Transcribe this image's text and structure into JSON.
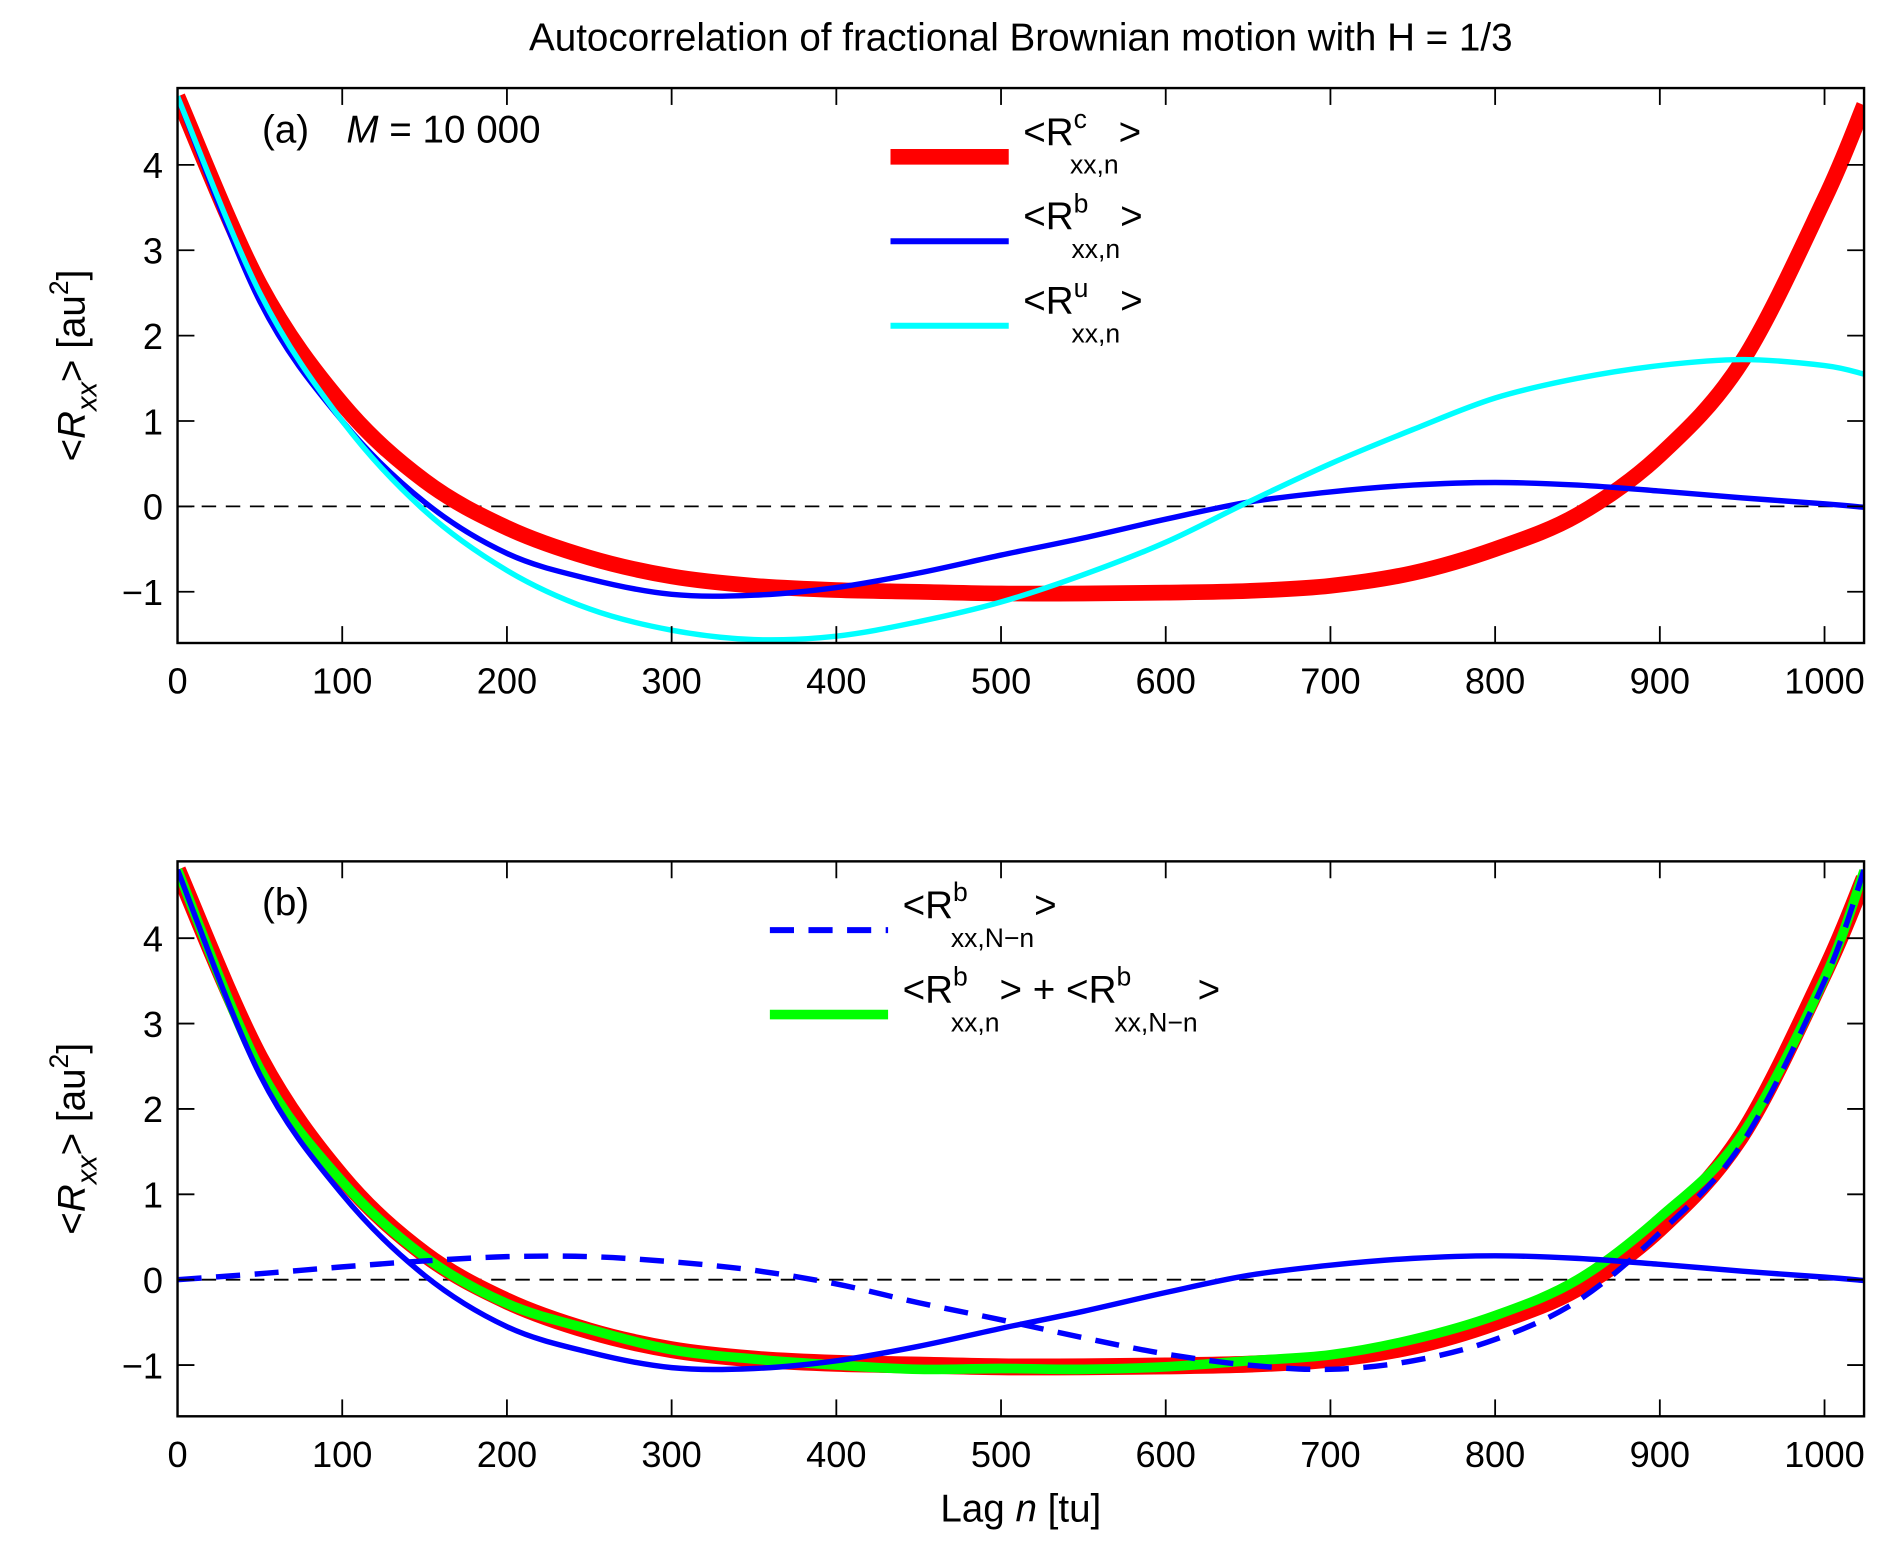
{
  "chart_data": [
    {
      "type": "line",
      "title": "Autocorrelation of fractional Brownian motion with H = 1/3",
      "panel_label": "(a)",
      "annotation_M": "M",
      "annotation_value": "= 10 000",
      "ylabel": {
        "main": "<R",
        "sub": "xx",
        "close": "> [au",
        "sup": "2",
        "end": "]"
      },
      "xlabel": "",
      "xlim": [
        0,
        1024
      ],
      "ylim": [
        -1.6,
        4.9
      ],
      "xticks": [
        "0",
        "100",
        "200",
        "300",
        "400",
        "500",
        "600",
        "700",
        "800",
        "900",
        "1000"
      ],
      "yticks": [
        "-1",
        "0",
        "1",
        "2",
        "3",
        "4"
      ],
      "zero_line": "dashed",
      "legend_position": "top-center",
      "x": [
        0,
        50,
        100,
        150,
        200,
        250,
        300,
        350,
        400,
        450,
        500,
        550,
        600,
        650,
        700,
        750,
        800,
        850,
        900,
        950,
        1000,
        1024
      ],
      "series": [
        {
          "name": "<R^c_xx,n>",
          "label": {
            "main": "<R",
            "sup": "c",
            "sub": "xx,n",
            "end": ">"
          },
          "color": "#ff0000",
          "style": "thick",
          "values": [
            4.8,
            2.6,
            1.2,
            0.3,
            -0.25,
            -0.6,
            -0.82,
            -0.93,
            -0.98,
            -1.0,
            -1.02,
            -1.02,
            -1.01,
            -0.99,
            -0.93,
            -0.78,
            -0.5,
            -0.1,
            0.6,
            1.7,
            3.6,
            4.7
          ]
        },
        {
          "name": "<R^b_xx,n>",
          "label": {
            "main": "<R",
            "sup": "b",
            "sub": "xx,n",
            "end": ">"
          },
          "color": "#0000ff",
          "style": "solid",
          "values": [
            4.8,
            2.4,
            1.0,
            0.05,
            -0.55,
            -0.85,
            -1.03,
            -1.04,
            -0.95,
            -0.78,
            -0.57,
            -0.37,
            -0.15,
            0.05,
            0.17,
            0.25,
            0.28,
            0.25,
            0.18,
            0.1,
            0.03,
            -0.01
          ]
        },
        {
          "name": "<R^u_xx,n>",
          "label": {
            "main": "<R",
            "sup": "u",
            "sub": "xx,n",
            "end": ">"
          },
          "color": "#00ffff",
          "style": "solid",
          "values": [
            4.8,
            2.5,
            1.0,
            -0.05,
            -0.75,
            -1.2,
            -1.45,
            -1.56,
            -1.52,
            -1.35,
            -1.12,
            -0.8,
            -0.42,
            0.05,
            0.5,
            0.9,
            1.27,
            1.5,
            1.65,
            1.72,
            1.65,
            1.55
          ]
        }
      ]
    },
    {
      "type": "line",
      "panel_label": "(b)",
      "ylabel": {
        "main": "<R",
        "sub": "xx",
        "close": "> [au",
        "sup": "2",
        "end": "]"
      },
      "xlabel": {
        "pre": "Lag ",
        "var": "n",
        "post": " [tu]"
      },
      "xlim": [
        0,
        1024
      ],
      "ylim": [
        -1.6,
        4.9
      ],
      "xticks": [
        "0",
        "100",
        "200",
        "300",
        "400",
        "500",
        "600",
        "700",
        "800",
        "900",
        "1000"
      ],
      "yticks": [
        "-1",
        "0",
        "1",
        "2",
        "3",
        "4"
      ],
      "zero_line": "dashed",
      "legend_position": "top-center",
      "x": [
        0,
        50,
        100,
        150,
        200,
        250,
        300,
        350,
        400,
        450,
        500,
        550,
        600,
        650,
        700,
        750,
        800,
        850,
        900,
        950,
        1000,
        1024
      ],
      "series": [
        {
          "name": "<R^c_xx,n>",
          "color": "#ff0000",
          "style": "outline",
          "in_legend": false,
          "values": [
            4.8,
            2.6,
            1.2,
            0.3,
            -0.25,
            -0.6,
            -0.82,
            -0.93,
            -0.98,
            -1.0,
            -1.02,
            -1.02,
            -1.01,
            -0.99,
            -0.93,
            -0.78,
            -0.5,
            -0.1,
            0.6,
            1.7,
            3.6,
            4.7
          ]
        },
        {
          "name": "<R^b_xx,n> + <R^b_xx,N-n>",
          "label": {
            "main": "<R",
            "sup": "b",
            "sub": "xx,n",
            "mid": "> + <R",
            "sup2": "b",
            "sub2": "xx,N−n",
            "end": ">"
          },
          "color": "#00ff00",
          "style": "thick",
          "values": [
            4.8,
            2.47,
            1.15,
            0.27,
            -0.28,
            -0.58,
            -0.82,
            -0.93,
            -1.0,
            -1.05,
            -1.04,
            -1.05,
            -1.02,
            -0.95,
            -0.88,
            -0.7,
            -0.42,
            0.0,
            0.73,
            1.7,
            3.53,
            4.79
          ]
        },
        {
          "name": "<R^b_xx,n>",
          "color": "#0000ff",
          "style": "solid",
          "in_legend": false,
          "values": [
            4.8,
            2.4,
            1.0,
            0.05,
            -0.55,
            -0.85,
            -1.03,
            -1.04,
            -0.95,
            -0.78,
            -0.57,
            -0.37,
            -0.15,
            0.05,
            0.17,
            0.25,
            0.28,
            0.25,
            0.18,
            0.1,
            0.03,
            -0.01
          ]
        },
        {
          "name": "<R^b_xx,N-n>",
          "label": {
            "main": "<R",
            "sup": "b",
            "sub": "xx,N−n",
            "end": ">"
          },
          "color": "#0000ff",
          "style": "dashed",
          "values": [
            0,
            0.07,
            0.15,
            0.22,
            0.27,
            0.27,
            0.21,
            0.11,
            -0.05,
            -0.27,
            -0.47,
            -0.68,
            -0.87,
            -1.0,
            -1.05,
            -0.95,
            -0.7,
            -0.25,
            0.55,
            1.6,
            3.5,
            4.8
          ]
        }
      ]
    }
  ]
}
